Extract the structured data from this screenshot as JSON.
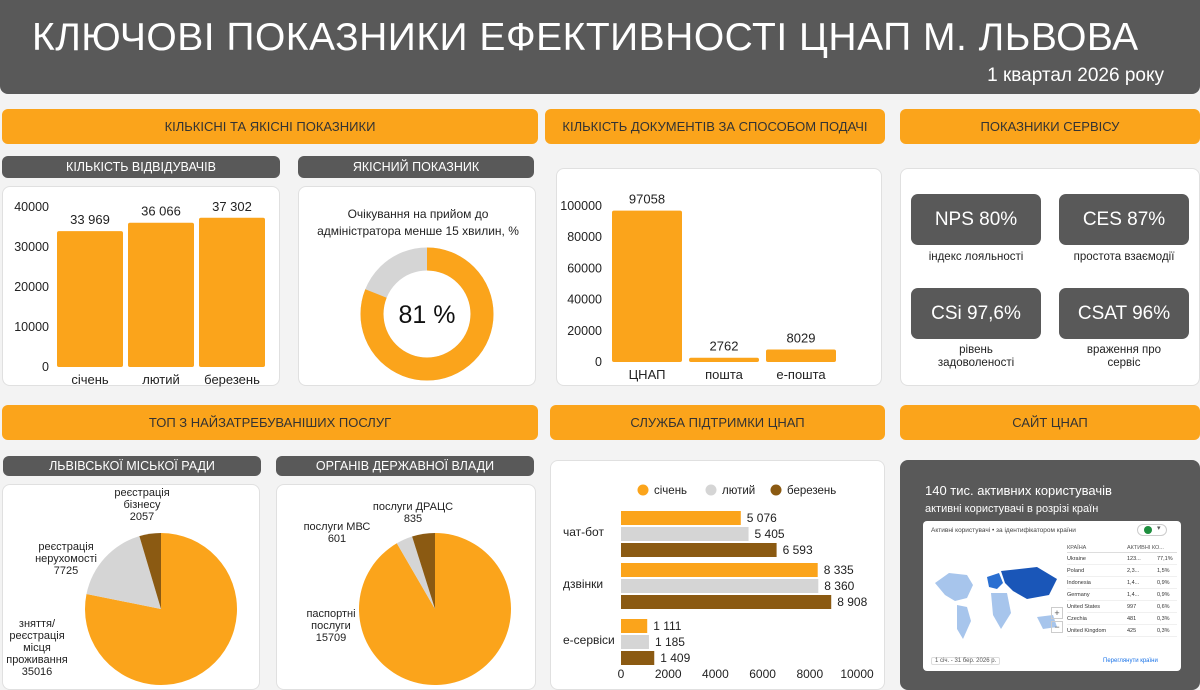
{
  "header": {
    "title": "КЛЮЧОВІ ПОКАЗНИКИ ЕФЕКТИВНОСТІ ЦНАП М. ЛЬВОВА",
    "subtitle": "1 квартал 2026 року"
  },
  "sections": {
    "quant": "КІЛЬКІСНІ ТА ЯКІСНІ ПОКАЗНИКИ",
    "docs": "КІЛЬКІСТЬ ДОКУМЕНТІВ ЗА СПОСОБОМ ПОДАЧІ",
    "service": "ПОКАЗНИКИ СЕРВІСУ",
    "top": "ТОП З НАЙЗАТРЕБУВАНІШИХ ПОСЛУГ",
    "support": "СЛУЖБА ПІДТРИМКИ ЦНАП",
    "site": "САЙТ ЦНАП"
  },
  "subsections": {
    "visitors": "КІЛЬКІСТЬ ВІДВІДУВАЧІВ",
    "quality": "ЯКІСНИЙ ПОКАЗНИК",
    "city": "ЛЬВІВСЬКОЇ МІСЬКОЇ РАДИ",
    "state": "ОРГАНІВ ДЕРЖАВНОЇ ВЛАДИ"
  },
  "quality": {
    "text": "Очікування на прийом до адміністратора менше 15 хвилин, %",
    "value_label": "81 %",
    "value": 81,
    "colors": {
      "fill": "#fba41b",
      "rest": "#d5d5d5"
    }
  },
  "service": {
    "nps": {
      "value": "NPS 80%",
      "caption": "індекс лояльності"
    },
    "ces": {
      "value": "CES 87%",
      "caption": "простота взаємодії"
    },
    "csi": {
      "value": "CSi 97,6%",
      "caption": "рівень задоволеності"
    },
    "csat": {
      "value": "CSAT 96%",
      "caption": "враження про сервіс"
    }
  },
  "site": {
    "headline": "140 тис. активних користувачів",
    "subline": "активні користувачі в розрізі країн",
    "widget": {
      "title": "Активні користувачі • за ідентифікатором країни",
      "col_country": "КРАЇНА",
      "col_users": "АКТИВНІ КО...",
      "rows": [
        {
          "country": "Ukraine",
          "users": "123...",
          "pct": "77,1%"
        },
        {
          "country": "Poland",
          "users": "2,3...",
          "pct": "1,5%"
        },
        {
          "country": "Indonesia",
          "users": "1,4...",
          "pct": "0,9%"
        },
        {
          "country": "Germany",
          "users": "1,4...",
          "pct": "0,9%"
        },
        {
          "country": "United States",
          "users": "997",
          "pct": "0,6%"
        },
        {
          "country": "Czechia",
          "users": "481",
          "pct": "0,3%"
        },
        {
          "country": "United Kingdom",
          "users": "425",
          "pct": "0,3%"
        }
      ],
      "date_range": "1 січ. - 31 бер. 2026 р.",
      "link": "Переглянути країни"
    }
  },
  "colors": {
    "orange": "#fba41b",
    "gray": "#d5d5d5",
    "brown": "#8b5a12",
    "dark": "#595959"
  },
  "chart_data": [
    {
      "id": "visitors",
      "type": "bar",
      "categories": [
        "січень",
        "лютий",
        "березень"
      ],
      "values": [
        33969,
        36066,
        37302
      ],
      "value_labels": [
        "33 969",
        "36 066",
        "37 302"
      ],
      "yticks": [
        "0",
        "10000",
        "20000",
        "30000",
        "40000"
      ],
      "ylim": [
        0,
        40000
      ]
    },
    {
      "id": "documents",
      "type": "bar",
      "categories": [
        "ЦНАП",
        "пошта",
        "е-пошта"
      ],
      "values": [
        97058,
        2762,
        8029
      ],
      "value_labels": [
        "97058",
        "2762",
        "8029"
      ],
      "yticks": [
        "0",
        "20000",
        "40000",
        "60000",
        "80000",
        "100000"
      ],
      "ylim": [
        0,
        100000
      ]
    },
    {
      "id": "city_services",
      "type": "pie",
      "slices": [
        {
          "label": [
            "зняття/",
            "реєстрація",
            "місця",
            "проживання"
          ],
          "value": 35016,
          "value_label": "35016",
          "color": "#fba41b"
        },
        {
          "label": [
            "реєстрація",
            "нерухомості"
          ],
          "value": 7725,
          "value_label": "7725",
          "color": "#d5d5d5"
        },
        {
          "label": [
            "реєстрація",
            "бізнесу"
          ],
          "value": 2057,
          "value_label": "2057",
          "color": "#8b5a12"
        }
      ]
    },
    {
      "id": "state_services",
      "type": "pie",
      "slices": [
        {
          "label": [
            "паспортні",
            "послуги"
          ],
          "value": 15709,
          "value_label": "15709",
          "color": "#fba41b"
        },
        {
          "label": [
            "послуги МВС"
          ],
          "value": 601,
          "value_label": "601",
          "color": "#d5d5d5"
        },
        {
          "label": [
            "послуги ДРАЦС"
          ],
          "value": 835,
          "value_label": "835",
          "color": "#8b5a12"
        }
      ]
    },
    {
      "id": "support",
      "type": "bar",
      "orientation": "horizontal",
      "categories": [
        "чат-бот",
        "дзвінки",
        "е-сервіси"
      ],
      "series": [
        {
          "name": "січень",
          "values": [
            5076,
            8335,
            1111
          ],
          "labels": [
            "5 076",
            "8 335",
            "1 111"
          ],
          "color": "#fba41b"
        },
        {
          "name": "лютий",
          "values": [
            5405,
            8360,
            1185
          ],
          "labels": [
            "5 405",
            "8 360",
            "1 185"
          ],
          "color": "#d5d5d5"
        },
        {
          "name": "березень",
          "values": [
            6593,
            8908,
            1409
          ],
          "labels": [
            "6 593",
            "8 908",
            "1 409"
          ],
          "color": "#8b5a12"
        }
      ],
      "xticks": [
        "0",
        "2000",
        "4000",
        "6000",
        "8000",
        "10000"
      ],
      "xlim": [
        0,
        10000
      ],
      "legend": "top"
    }
  ]
}
